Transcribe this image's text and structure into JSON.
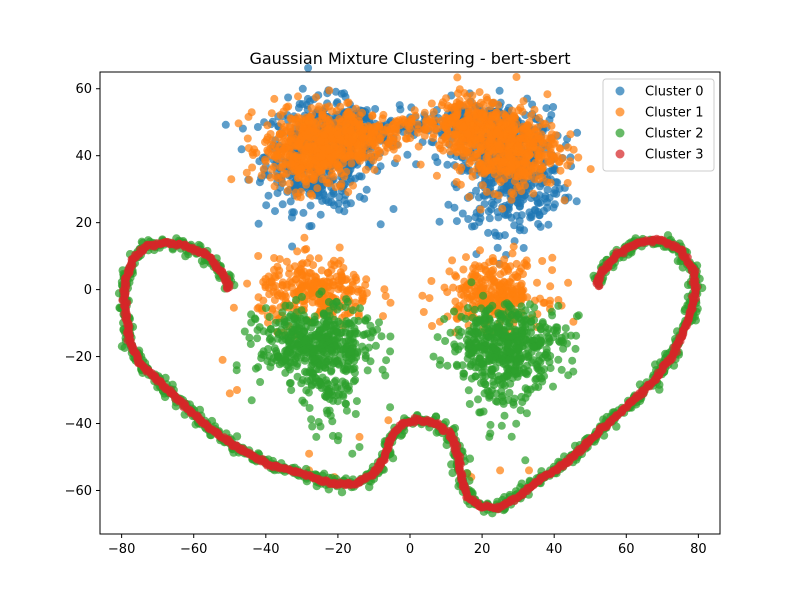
{
  "chart_data": {
    "type": "scatter",
    "title": "Gaussian Mixture Clustering - bert-sbert",
    "xlabel": "",
    "ylabel": "",
    "xlim": [
      -86,
      86
    ],
    "ylim": [
      -73,
      65
    ],
    "xticks": [
      -80,
      -60,
      -40,
      -20,
      0,
      20,
      40,
      60,
      80
    ],
    "yticks": [
      -60,
      -40,
      -20,
      0,
      20,
      40,
      60
    ],
    "grid": false,
    "legend_position": "top-right",
    "series": [
      {
        "name": "Cluster 0",
        "color": "#1f77b4",
        "blobs": [
          {
            "cx": -25,
            "cy": 40,
            "sx": 7.5,
            "sy": 8,
            "n": 500
          },
          {
            "cx": -15,
            "cy": 47,
            "sx": 6,
            "sy": 4,
            "n": 120
          },
          {
            "cx": 28,
            "cy": 36,
            "sx": 7,
            "sy": 9,
            "n": 500
          },
          {
            "cx": 18,
            "cy": 49,
            "sx": 6,
            "sy": 4,
            "n": 120
          },
          {
            "cx": 2,
            "cy": 49,
            "sx": 4,
            "sy": 2,
            "n": 40
          }
        ]
      },
      {
        "name": "Cluster 1",
        "color": "#ff7f0e",
        "blobs": [
          {
            "cx": -28,
            "cy": 42,
            "sx": 6.5,
            "sy": 6,
            "n": 450
          },
          {
            "cx": -14,
            "cy": 46,
            "sx": 6,
            "sy": 4,
            "n": 200
          },
          {
            "cx": 27,
            "cy": 42,
            "sx": 7,
            "sy": 6,
            "n": 450
          },
          {
            "cx": 16,
            "cy": 50,
            "sx": 5,
            "sy": 4,
            "n": 200
          },
          {
            "cx": 0,
            "cy": 49,
            "sx": 4,
            "sy": 2,
            "n": 40
          },
          {
            "cx": -26,
            "cy": -1,
            "sx": 8,
            "sy": 5,
            "n": 280
          },
          {
            "cx": 23,
            "cy": -1,
            "sx": 7,
            "sy": 5,
            "n": 280
          }
        ],
        "points": [
          [
            -52,
            -21
          ],
          [
            -48,
            -30
          ],
          [
            -50,
            -31
          ],
          [
            -28,
            -49
          ],
          [
            -21,
            -56
          ],
          [
            -14,
            -44
          ],
          [
            -6,
            -39
          ],
          [
            16,
            -55
          ],
          [
            25,
            -54
          ],
          [
            33,
            -54
          ],
          [
            -28,
            -54
          ],
          [
            17,
            -56
          ]
        ]
      },
      {
        "name": "Cluster 2",
        "color": "#2ca02c",
        "blobs": [
          {
            "cx": -26,
            "cy": -17,
            "sx": 8,
            "sy": 6,
            "n": 450
          },
          {
            "cx": 27,
            "cy": -16,
            "sx": 8,
            "sy": 6,
            "n": 450
          },
          {
            "cx": -23,
            "cy": -32,
            "sx": 4,
            "sy": 5,
            "n": 60
          },
          {
            "cx": 24,
            "cy": -31,
            "sx": 4,
            "sy": 5,
            "n": 60
          }
        ],
        "points": [
          [
            -20,
            -45
          ],
          [
            -16,
            -49
          ],
          [
            -14,
            -47
          ],
          [
            5,
            -40
          ],
          [
            9,
            -42
          ],
          [
            12,
            -49
          ],
          [
            22,
            -44
          ],
          [
            32,
            -51
          ],
          [
            -26,
            -44
          ],
          [
            -12,
            -56
          ]
        ],
        "curve_outline": true
      },
      {
        "name": "Cluster 3",
        "color": "#d62728",
        "curve": [
          [
            -50,
            0
          ],
          [
            -52,
            5
          ],
          [
            -56,
            10
          ],
          [
            -62,
            13
          ],
          [
            -68,
            14
          ],
          [
            -73,
            13
          ],
          [
            -77,
            9
          ],
          [
            -79,
            3
          ],
          [
            -79,
            -5
          ],
          [
            -78,
            -15
          ],
          [
            -75,
            -22
          ],
          [
            -71,
            -26
          ],
          [
            -66,
            -31
          ],
          [
            -61,
            -36
          ],
          [
            -55,
            -42
          ],
          [
            -48,
            -47
          ],
          [
            -40,
            -52
          ],
          [
            -30,
            -55
          ],
          [
            -22,
            -58
          ],
          [
            -15,
            -58
          ],
          [
            -10,
            -55
          ],
          [
            -7,
            -50
          ],
          [
            -5,
            -44
          ],
          [
            -2,
            -40
          ],
          [
            2,
            -39
          ],
          [
            7,
            -40
          ],
          [
            11,
            -43
          ],
          [
            13,
            -48
          ],
          [
            14,
            -55
          ],
          [
            16,
            -62
          ],
          [
            20,
            -65
          ],
          [
            25,
            -65
          ],
          [
            30,
            -62
          ],
          [
            37,
            -56
          ],
          [
            43,
            -52
          ],
          [
            49,
            -46
          ],
          [
            55,
            -40
          ],
          [
            62,
            -33
          ],
          [
            68,
            -27
          ],
          [
            73,
            -19
          ],
          [
            77,
            -10
          ],
          [
            79,
            -2
          ],
          [
            79,
            5
          ],
          [
            75,
            12
          ],
          [
            69,
            15
          ],
          [
            63,
            14
          ],
          [
            57,
            10
          ],
          [
            53,
            5
          ],
          [
            52,
            1
          ]
        ]
      }
    ]
  }
}
